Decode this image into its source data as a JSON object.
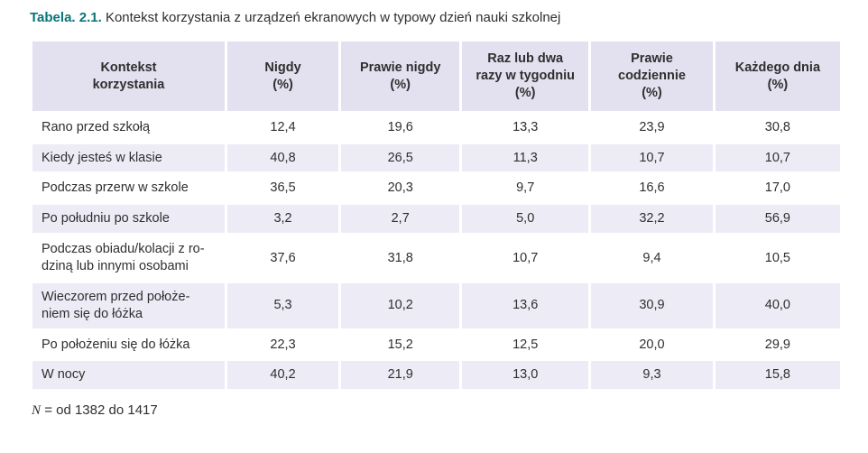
{
  "caption": {
    "label": "Tabela. 2.1.",
    "text": "Kontekst korzystania z urządzeń ekranowych w typowy dzień nauki szkolnej"
  },
  "table": {
    "columns": [
      "Kontekst\nkorzystania",
      "Nigdy\n(%)",
      "Prawie nigdy\n(%)",
      "Raz lub dwa\nrazy w tygodniu\n(%)",
      "Prawie\ncodziennie\n(%)",
      "Każdego dnia\n(%)"
    ],
    "rows": [
      {
        "label": "Rano przed szkołą",
        "values": [
          "12,4",
          "19,6",
          "13,3",
          "23,9",
          "30,8"
        ]
      },
      {
        "label": "Kiedy jesteś w klasie",
        "values": [
          "40,8",
          "26,5",
          "11,3",
          "10,7",
          "10,7"
        ]
      },
      {
        "label": "Podczas przerw w szkole",
        "values": [
          "36,5",
          "20,3",
          "9,7",
          "16,6",
          "17,0"
        ]
      },
      {
        "label": "Po południu po szkole",
        "values": [
          "3,2",
          "2,7",
          "5,0",
          "32,2",
          "56,9"
        ]
      },
      {
        "label": "Podczas obiadu/kolacji z ro-\ndziną lub innymi osobami",
        "values": [
          "37,6",
          "31,8",
          "10,7",
          "9,4",
          "10,5"
        ]
      },
      {
        "label": "Wieczorem przed położe-\nniem się do łóżka",
        "values": [
          "5,3",
          "10,2",
          "13,6",
          "30,9",
          "40,0"
        ]
      },
      {
        "label": "Po położeniu się do łóżka",
        "values": [
          "22,3",
          "15,2",
          "12,5",
          "20,0",
          "29,9"
        ]
      },
      {
        "label": "W nocy",
        "values": [
          "40,2",
          "21,9",
          "13,0",
          "9,3",
          "15,8"
        ]
      }
    ]
  },
  "footer": {
    "n_label": "N",
    "text": "= od 1382 do 1417"
  },
  "colors": {
    "accent": "#0a7378",
    "header_bg": "#e3e0ef",
    "stripe_bg": "#edebf6",
    "text": "#2f2f2f"
  }
}
